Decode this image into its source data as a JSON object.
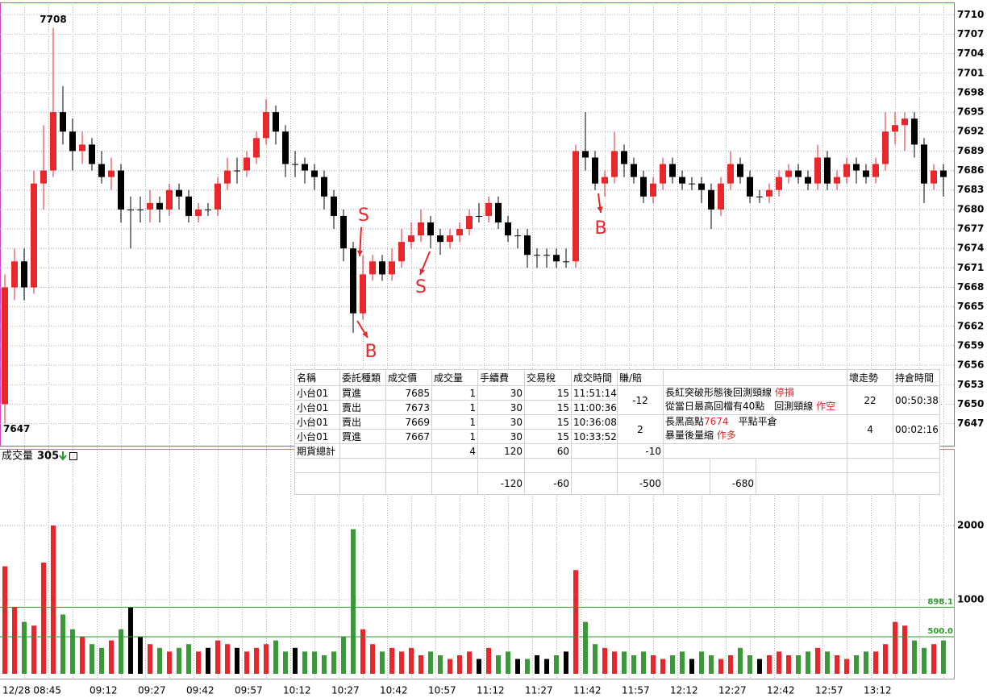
{
  "chart_data": {
    "type": "candlestick",
    "categories": [
      "12/28 08:45",
      null,
      null,
      null,
      null,
      null,
      null,
      null,
      null,
      "09:12",
      null,
      null,
      null,
      null,
      "09:27",
      null,
      null,
      null,
      null,
      "09:42",
      null,
      null,
      null,
      null,
      "09:57",
      null,
      null,
      null,
      null,
      "10:12",
      null,
      null,
      null,
      null,
      "10:27",
      null,
      null,
      null,
      null,
      "10:42",
      null,
      null,
      null,
      null,
      "10:57",
      null,
      null,
      null,
      null,
      "11:12",
      null,
      null,
      null,
      null,
      "11:27",
      null,
      null,
      null,
      null,
      "11:42",
      null,
      null,
      null,
      null,
      "11:57",
      null,
      null,
      null,
      null,
      "12:12",
      null,
      null,
      null,
      null,
      "12:27",
      null,
      null,
      null,
      null,
      "12:42",
      null,
      null,
      null,
      null,
      "12:57",
      null,
      null,
      null,
      null,
      "13:12",
      null,
      null,
      null,
      null,
      null,
      null,
      null,
      null
    ],
    "open": [
      7650,
      7668,
      7672,
      7668,
      7684,
      7686,
      7695,
      7692,
      7689,
      7690,
      7687,
      7685,
      7686,
      7680,
      7680,
      7680,
      7681,
      7680,
      7683,
      7682,
      7679,
      7680,
      7680,
      7684,
      7686,
      7686,
      7688,
      7691,
      7695,
      7692,
      7687,
      7687,
      7686,
      7685,
      7682,
      7679,
      7674,
      7664,
      7670,
      7672,
      7670,
      7672,
      7675,
      7676,
      7678,
      7676,
      7675,
      7676,
      7677,
      7679,
      7679,
      7681,
      7678,
      7676,
      7676,
      7673,
      7673,
      7673,
      7672,
      7672,
      7689,
      7688,
      7684,
      7685,
      7689,
      7687,
      7685,
      7682,
      7684,
      7687,
      7685,
      7684,
      7684,
      7683,
      7680,
      7684,
      7687,
      7685,
      7682,
      7682,
      7683,
      7685,
      7686,
      7685,
      7684,
      7688,
      7684,
      7685,
      7687,
      7686,
      7685,
      7687,
      7692,
      7693,
      7694,
      7690,
      7684,
      7686
    ],
    "high": [
      7670,
      7674,
      7674,
      7686,
      7693,
      7708,
      7699,
      7694,
      7692,
      7691,
      7689,
      7688,
      7687,
      7682,
      7682,
      7683,
      7682,
      7684,
      7684,
      7683,
      7681,
      7681,
      7685,
      7688,
      7688,
      7689,
      7692,
      7697,
      7696,
      7693,
      7689,
      7688,
      7687,
      7686,
      7683,
      7680,
      7675,
      7673,
      7673,
      7673,
      7674,
      7677,
      7678,
      7680,
      7679,
      7677,
      7677,
      7678,
      7680,
      7681,
      7682,
      7682,
      7679,
      7677,
      7677,
      7674,
      7674,
      7674,
      7674,
      7690,
      7695,
      7689,
      7686,
      7692,
      7690,
      7688,
      7686,
      7685,
      7688,
      7688,
      7686,
      7685,
      7685,
      7684,
      7685,
      7689,
      7688,
      7686,
      7683,
      7684,
      7686,
      7687,
      7687,
      7686,
      7690,
      7689,
      7686,
      7688,
      7688,
      7687,
      7688,
      7695,
      7695,
      7695,
      7695,
      7691,
      7687,
      7687
    ],
    "low": [
      7647,
      7666,
      7666,
      7667,
      7680,
      7685,
      7690,
      7686,
      7687,
      7686,
      7684,
      7683,
      7678,
      7674,
      7678,
      7678,
      7678,
      7679,
      7680,
      7678,
      7678,
      7679,
      7679,
      7683,
      7684,
      7685,
      7687,
      7690,
      7690,
      7685,
      7685,
      7684,
      7683,
      7680,
      7677,
      7672,
      7661,
      7663,
      7669,
      7669,
      7669,
      7671,
      7674,
      7675,
      7674,
      7673,
      7674,
      7675,
      7676,
      7678,
      7678,
      7677,
      7675,
      7674,
      7671,
      7671,
      7671,
      7671,
      7671,
      7671,
      7686,
      7683,
      7682,
      7684,
      7685,
      7684,
      7681,
      7681,
      7683,
      7684,
      7683,
      7683,
      7681,
      7677,
      7679,
      7683,
      7684,
      7681,
      7681,
      7681,
      7682,
      7684,
      7684,
      7683,
      7683,
      7683,
      7683,
      7684,
      7684,
      7684,
      7684,
      7686,
      7690,
      7689,
      7688,
      7681,
      7683,
      7682
    ],
    "close": [
      7668,
      7672,
      7668,
      7684,
      7686,
      7695,
      7692,
      7689,
      7690,
      7687,
      7685,
      7686,
      7680,
      7680,
      7680,
      7681,
      7680,
      7683,
      7682,
      7679,
      7680,
      7680,
      7684,
      7686,
      7686,
      7688,
      7691,
      7695,
      7692,
      7687,
      7687,
      7686,
      7685,
      7682,
      7679,
      7674,
      7664,
      7670,
      7672,
      7670,
      7672,
      7675,
      7676,
      7678,
      7676,
      7675,
      7676,
      7677,
      7679,
      7679,
      7681,
      7678,
      7676,
      7676,
      7673,
      7673,
      7673,
      7672,
      7672,
      7689,
      7688,
      7684,
      7685,
      7689,
      7687,
      7685,
      7682,
      7684,
      7687,
      7685,
      7684,
      7684,
      7683,
      7680,
      7684,
      7687,
      7685,
      7682,
      7682,
      7683,
      7685,
      7686,
      7685,
      7684,
      7688,
      7684,
      7685,
      7687,
      7686,
      7685,
      7687,
      7692,
      7693,
      7694,
      7690,
      7684,
      7686,
      7685
    ],
    "up_color": "#e8262b",
    "down_color": "#000000",
    "flat_color": "#000000",
    "ylim": [
      7643.6,
      7711.9
    ],
    "yticks": [
      7710,
      7707,
      7704,
      7701,
      7698,
      7695,
      7692,
      7689,
      7686,
      7683,
      7680,
      7677,
      7674,
      7671,
      7668,
      7665,
      7662,
      7659,
      7656,
      7653,
      7650,
      7647
    ],
    "grid": true,
    "high_label": 7708,
    "low_label": 7647,
    "signals": [
      "S",
      "B",
      "S",
      "B"
    ],
    "volume": {
      "label": "成交量",
      "last": 305,
      "values": [
        1450,
        900,
        700,
        650,
        1500,
        2000,
        800,
        600,
        500,
        400,
        350,
        450,
        600,
        900,
        500,
        400,
        350,
        300,
        350,
        400,
        300,
        350,
        450,
        400,
        350,
        300,
        350,
        400,
        450,
        300,
        350,
        300,
        300,
        250,
        300,
        500,
        1950,
        600,
        400,
        300,
        350,
        300,
        350,
        250,
        300,
        250,
        200,
        250,
        300,
        200,
        350,
        250,
        300,
        200,
        200,
        250,
        200,
        250,
        300,
        1400,
        700,
        400,
        350,
        300,
        300,
        250,
        300,
        250,
        200,
        250,
        300,
        200,
        300,
        250,
        200,
        250,
        350,
        250,
        200,
        250,
        300,
        250,
        250,
        300,
        350,
        300,
        250,
        200,
        250,
        300,
        300,
        400,
        700,
        650,
        450,
        350,
        400,
        450
      ],
      "up_color": "#e8262b",
      "down_color": "#3a9a3a",
      "flat_color": "#000000",
      "ylim": [
        0,
        3000
      ],
      "yticks": [
        1000,
        2000
      ],
      "ref_lines": [
        {
          "value": 898.1,
          "label": "898.1",
          "color": "#2a9a2a"
        },
        {
          "value": 500,
          "label": "500.0",
          "color": "#2a9a2a"
        }
      ]
    }
  },
  "trade_table": {
    "headers": [
      "名稱",
      "委託種類",
      "成交價",
      "成交量",
      "手續費",
      "交易稅",
      "成交時間",
      "賺/賠",
      "壞走勢",
      "持倉時間"
    ],
    "trades": [
      [
        "小台01",
        "買進",
        7685,
        1,
        30,
        15,
        "11:51:14"
      ],
      [
        "小台01",
        "賣出",
        7673,
        1,
        30,
        15,
        "11:00:36"
      ],
      [
        "小台01",
        "賣出",
        7669,
        1,
        30,
        15,
        "10:36:08"
      ],
      [
        "小台01",
        "買進",
        7667,
        1,
        30,
        15,
        "10:33:52"
      ]
    ],
    "pairs": [
      {
        "pnl": -12,
        "notes": [
          [
            "長紅突破形態後回測頸線",
            "停損"
          ],
          [
            "從當日最高回檔有40點　回測頸線",
            "作空"
          ]
        ],
        "trend": 22,
        "hold": "00:50:38"
      },
      {
        "pnl": 2,
        "notes": [
          [
            "長黑高點",
            "7674",
            "　平點平倉"
          ],
          [
            "暴量後量縮",
            "作多"
          ]
        ],
        "trend": 4,
        "hold": "00:02:16"
      }
    ],
    "total": {
      "label": "期貨總計",
      "qty": 4,
      "fee": 120,
      "tax": 60,
      "pnl": -10
    },
    "net": {
      "fee": -120,
      "tax": -60,
      "pnl": -500,
      "net": -680
    }
  }
}
